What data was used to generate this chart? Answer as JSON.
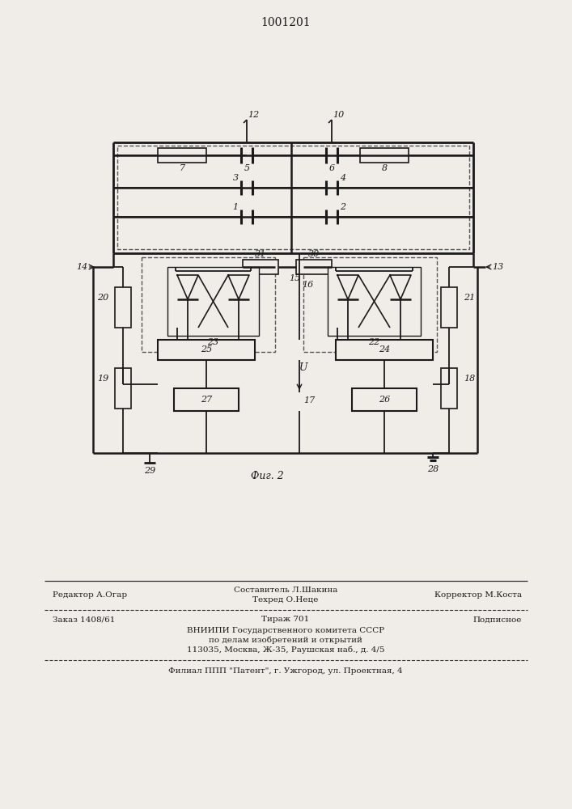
{
  "title": "1001201",
  "fig_label": "Фиг. 2",
  "bg_color": "#f0ede8",
  "line_color": "#1a1a1a",
  "footer": {
    "editor": "Редактор А.Огар",
    "composer": "Составитель Л.Шакина",
    "techred": "Техред О.Неце",
    "corrector": "Корректор М.Коста",
    "order": "Заказ 1408/61",
    "tirazh": "Тираж 701",
    "podpisnoe": "Подписное",
    "vniiipi1": "ВНИИПИ Государственного комитета СССР",
    "vniiipi2": "по делам изобретений и открытий",
    "vniiipi3": "113035, Москва, Ж-35, Раушская наб., д. 4/5",
    "filial": "Филиал ППП \"Патент\", г. Ужгород, ул. Проектная, 4"
  }
}
